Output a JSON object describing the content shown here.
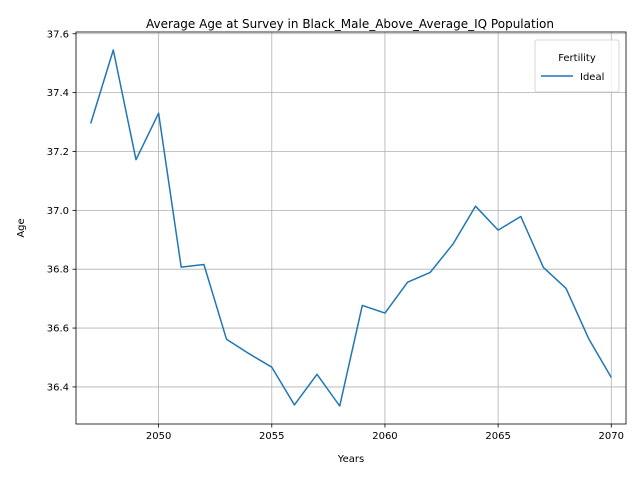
{
  "chart_data": {
    "type": "line",
    "title": "Average Age at Survey in Black_Male_Above_Average_IQ Population",
    "xlabel": "Years",
    "ylabel": "Age",
    "xlim": [
      2046.35,
      2070.65
    ],
    "ylim": [
      36.274,
      37.606
    ],
    "x_ticks": [
      2050,
      2055,
      2060,
      2065,
      2070
    ],
    "y_ticks": [
      36.4,
      36.6,
      36.8,
      37.0,
      37.2,
      37.4,
      37.6
    ],
    "x_tick_labels": [
      "2050",
      "2055",
      "2060",
      "2065",
      "2070"
    ],
    "y_tick_labels": [
      "36.4",
      "36.6",
      "36.8",
      "37.0",
      "37.2",
      "37.4",
      "37.6"
    ],
    "grid": true,
    "legend": {
      "title": "Fertility",
      "placement": "top-right"
    },
    "series": [
      {
        "name": "Ideal",
        "color": "#1f77b4",
        "x": [
          2047,
          2048,
          2049,
          2050,
          2051,
          2052,
          2053,
          2054,
          2055,
          2056,
          2057,
          2058,
          2059,
          2060,
          2061,
          2062,
          2063,
          2064,
          2065,
          2066,
          2067,
          2068,
          2069,
          2070
        ],
        "y": [
          37.295,
          37.545,
          37.172,
          37.33,
          36.807,
          36.816,
          36.562,
          36.513,
          36.467,
          36.339,
          36.443,
          36.335,
          36.677,
          36.651,
          36.756,
          36.789,
          36.885,
          37.014,
          36.933,
          36.979,
          36.806,
          36.735,
          36.564,
          36.432
        ]
      }
    ]
  }
}
